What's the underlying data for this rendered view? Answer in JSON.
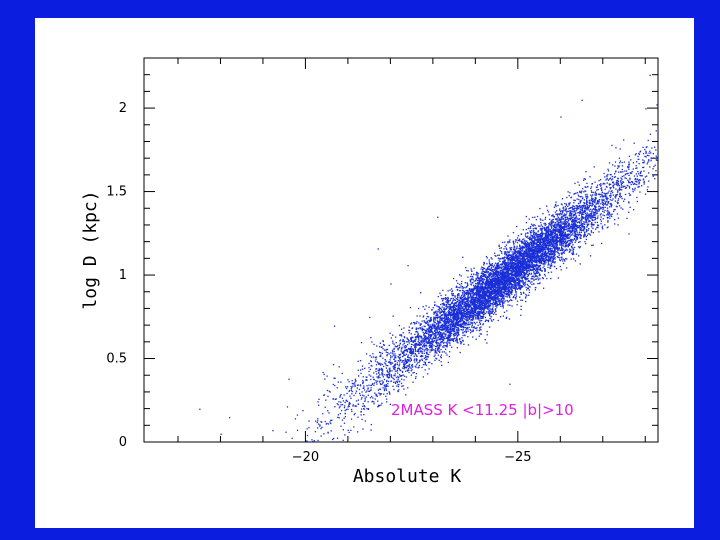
{
  "chart_data": {
    "type": "scatter",
    "title": "",
    "xlabel": "Absolute K",
    "ylabel": "log D (kpc)",
    "xlim": [
      -16.2,
      -28.3
    ],
    "ylim": [
      0,
      2.3
    ],
    "x_ticks": [
      {
        "value": -20,
        "label": "−20"
      },
      {
        "value": -25,
        "label": "−25"
      }
    ],
    "y_ticks": [
      {
        "value": 0,
        "label": "0"
      },
      {
        "value": 0.5,
        "label": "0.5"
      },
      {
        "value": 1,
        "label": "1"
      },
      {
        "value": 1.5,
        "label": "1.5"
      },
      {
        "value": 2,
        "label": "2"
      }
    ],
    "grid": false,
    "annotation": "2MASS  K <11.25 |b|>10",
    "point_color": "#1a2fd6",
    "series": [
      {
        "points": [
          {
            "x": -17.5,
            "y": 0.2
          },
          {
            "x": -18.2,
            "y": 0.15
          },
          {
            "x": -18.0,
            "y": 0.05
          },
          {
            "x": -19.6,
            "y": 0.38
          },
          {
            "x": -20.4,
            "y": 0.42
          },
          {
            "x": -21.5,
            "y": 0.75
          },
          {
            "x": -22.4,
            "y": 1.06
          },
          {
            "x": -22.0,
            "y": 0.95
          },
          {
            "x": -26.5,
            "y": 2.05
          },
          {
            "x": -26.0,
            "y": 1.95
          },
          {
            "x": -27.2,
            "y": 1.78
          },
          {
            "x": -28.0,
            "y": 2.0
          },
          {
            "x": -27.6,
            "y": 1.25
          },
          {
            "x": -26.3,
            "y": 1.1
          },
          {
            "x": -24.8,
            "y": 0.35
          },
          {
            "x": -28.1,
            "y": 2.2
          },
          {
            "x": -21.7,
            "y": 1.16
          },
          {
            "x": -23.1,
            "y": 1.35
          }
        ]
      }
    ],
    "density_model": {
      "slope_logD_per_mag": 0.2,
      "intercept_logD_at_K0": -3.95,
      "ridge_center_K": -24.4,
      "ridge_halfwidth_K": 2.6,
      "core_center_K": -24.8,
      "core_halfwidth_K": 1.1,
      "scatter_logD": 0.09
    }
  }
}
